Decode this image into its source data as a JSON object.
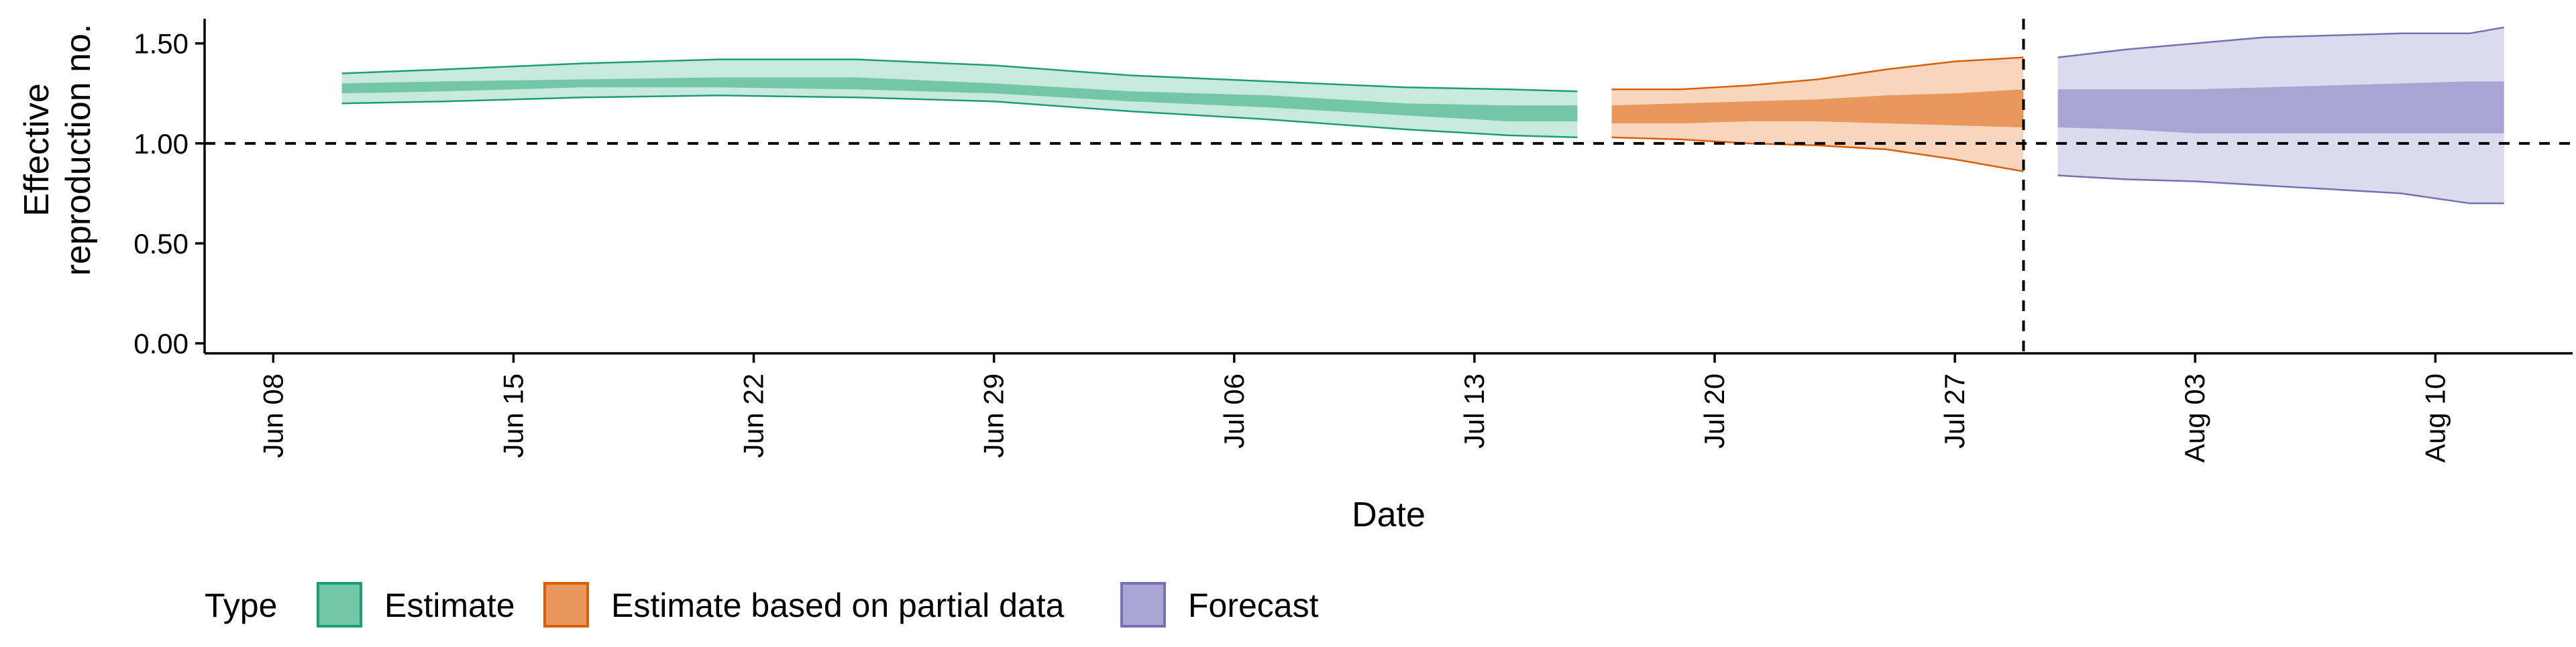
{
  "chart_data": {
    "type": "area",
    "xlabel": "Date",
    "ylabel_lines": [
      "Effective",
      "reproduction no."
    ],
    "xlim": [
      "2020-06-06",
      "2020-08-14"
    ],
    "ylim": [
      -0.05,
      1.65
    ],
    "x_ticks": [
      "Jun 08",
      "Jun 15",
      "Jun 22",
      "Jun 29",
      "Jul 06",
      "Jul 13",
      "Jul 20",
      "Jul 27",
      "Aug 03",
      "Aug 10"
    ],
    "x_tick_dates": [
      "2020-06-08",
      "2020-06-15",
      "2020-06-22",
      "2020-06-29",
      "2020-07-06",
      "2020-07-13",
      "2020-07-20",
      "2020-07-27",
      "2020-08-03",
      "2020-08-10"
    ],
    "y_ticks": [
      "0.00",
      "0.50",
      "1.00",
      "1.50"
    ],
    "y_tick_values": [
      0,
      0.5,
      1.0,
      1.5
    ],
    "grid": false,
    "reference_line": {
      "y": 1.0,
      "style": "dashed"
    },
    "forecast_vline": {
      "x": "2020-07-29",
      "style": "dashed"
    },
    "legend": {
      "position": "bottom-left",
      "title": "Type",
      "entries": [
        "Estimate",
        "Estimate based on partial data",
        "Forecast"
      ]
    },
    "colors": {
      "Estimate": {
        "outer": "#c8e9dd",
        "inner": "#74c6a8",
        "line": "#1b9e77"
      },
      "Estimate based on partial data": {
        "outer": "#f8d6bd",
        "inner": "#e8985c",
        "line": "#d95f02"
      },
      "Forecast": {
        "outer": "#dcdbee",
        "inner": "#a8a5d4",
        "line": "#7570b3"
      }
    },
    "series": [
      {
        "name": "Estimate",
        "x": [
          "2020-06-10",
          "2020-06-13",
          "2020-06-17",
          "2020-06-21",
          "2020-06-25",
          "2020-06-29",
          "2020-07-03",
          "2020-07-07",
          "2020-07-11",
          "2020-07-14",
          "2020-07-16"
        ],
        "outer_upper": [
          1.35,
          1.37,
          1.4,
          1.42,
          1.42,
          1.39,
          1.34,
          1.31,
          1.28,
          1.27,
          1.26
        ],
        "inner_upper": [
          1.3,
          1.31,
          1.32,
          1.33,
          1.33,
          1.3,
          1.26,
          1.24,
          1.2,
          1.19,
          1.19
        ],
        "inner_lower": [
          1.25,
          1.26,
          1.28,
          1.28,
          1.27,
          1.25,
          1.21,
          1.18,
          1.14,
          1.11,
          1.11
        ],
        "outer_lower": [
          1.2,
          1.21,
          1.23,
          1.24,
          1.23,
          1.21,
          1.16,
          1.12,
          1.07,
          1.04,
          1.03
        ]
      },
      {
        "name": "Estimate based on partial data",
        "x": [
          "2020-07-17",
          "2020-07-19",
          "2020-07-21",
          "2020-07-23",
          "2020-07-25",
          "2020-07-27",
          "2020-07-29"
        ],
        "outer_upper": [
          1.27,
          1.27,
          1.29,
          1.32,
          1.37,
          1.41,
          1.43
        ],
        "inner_upper": [
          1.19,
          1.2,
          1.21,
          1.22,
          1.24,
          1.25,
          1.27
        ],
        "inner_lower": [
          1.1,
          1.1,
          1.11,
          1.11,
          1.1,
          1.09,
          1.08
        ],
        "outer_lower": [
          1.03,
          1.02,
          1.0,
          0.99,
          0.97,
          0.92,
          0.86
        ]
      },
      {
        "name": "Forecast",
        "x": [
          "2020-07-30",
          "2020-08-01",
          "2020-08-03",
          "2020-08-05",
          "2020-08-07",
          "2020-08-09",
          "2020-08-11",
          "2020-08-12"
        ],
        "outer_upper": [
          1.43,
          1.47,
          1.5,
          1.53,
          1.54,
          1.55,
          1.55,
          1.58
        ],
        "inner_upper": [
          1.27,
          1.27,
          1.27,
          1.28,
          1.29,
          1.3,
          1.31,
          1.31
        ],
        "inner_lower": [
          1.08,
          1.07,
          1.05,
          1.05,
          1.05,
          1.05,
          1.05,
          1.05
        ],
        "outer_lower": [
          0.84,
          0.82,
          0.81,
          0.79,
          0.77,
          0.75,
          0.7,
          0.7
        ]
      }
    ]
  }
}
